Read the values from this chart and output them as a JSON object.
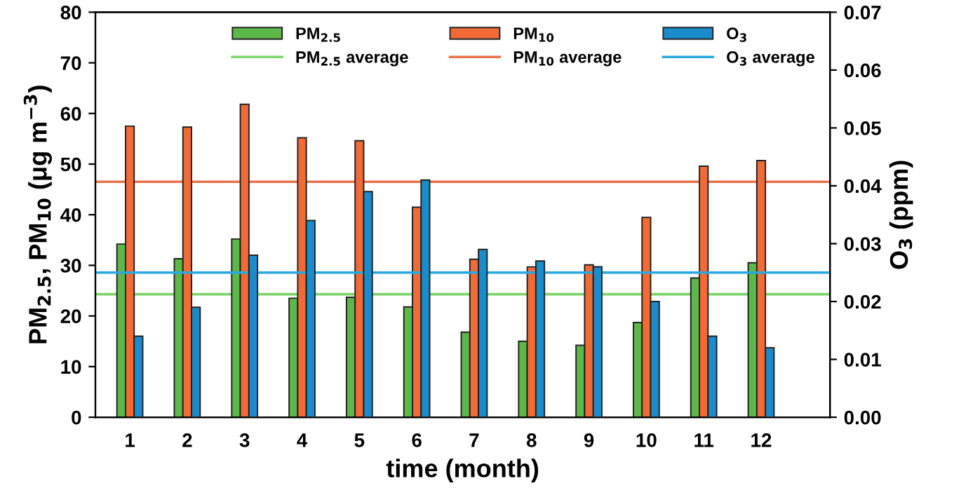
{
  "chart_data": {
    "type": "bar",
    "xlabel": "time (month)",
    "ylabel": "PM$_{2.5}$, PM$_{10}$ (μg m$^{−3}$)",
    "y2label": "O$_{3}$ (ppm)",
    "categories": [
      "1",
      "2",
      "3",
      "4",
      "5",
      "6",
      "7",
      "8",
      "9",
      "10",
      "11",
      "12"
    ],
    "series": [
      {
        "name": "PM$_{2.5}$",
        "color": "#5cb848",
        "values": [
          34.2,
          31.3,
          35.2,
          23.5,
          23.7,
          21.8,
          16.8,
          15.0,
          14.2,
          18.7,
          27.5,
          30.5
        ]
      },
      {
        "name": "PM$_{10}$",
        "color": "#f26b36",
        "values": [
          57.5,
          57.3,
          61.8,
          55.2,
          54.6,
          41.5,
          31.2,
          29.7,
          30.1,
          39.5,
          49.6,
          50.7
        ]
      },
      {
        "name": "O$_{3}$",
        "color": "#1a8ccc",
        "axis": "y2",
        "values": [
          0.014,
          0.019,
          0.028,
          0.034,
          0.039,
          0.041,
          0.029,
          0.027,
          0.026,
          0.02,
          0.014,
          0.012
        ]
      }
    ],
    "ref_lines": [
      {
        "axis": "y",
        "value": 24.3,
        "label": "PM$_{2.5}$ average",
        "color": "#7ed36b"
      },
      {
        "axis": "y",
        "value": 46.5,
        "label": "PM$_{10}$ average",
        "color": "#e8734a"
      },
      {
        "axis": "y2",
        "value": 0.025,
        "label": "O$_{3}$ average",
        "color": "#29a9e0"
      }
    ],
    "ylim": [
      0,
      80
    ],
    "yticks": [
      0,
      10,
      20,
      30,
      40,
      50,
      60,
      70,
      80
    ],
    "y2lim": [
      0,
      0.07
    ],
    "y2ticks": [
      {
        "value": 0,
        "label": "0.00"
      },
      {
        "value": 0.01,
        "label": "0.01"
      },
      {
        "value": 0.02,
        "label": "0.02"
      },
      {
        "value": 0.03,
        "label": "0.03"
      },
      {
        "value": 0.04,
        "label": "0.04"
      },
      {
        "value": 0.05,
        "label": "0.05"
      },
      {
        "value": 0.06,
        "label": "0.06"
      },
      {
        "value": 0.07,
        "label": "0.07"
      }
    ],
    "grid": false,
    "legend": "top right"
  }
}
